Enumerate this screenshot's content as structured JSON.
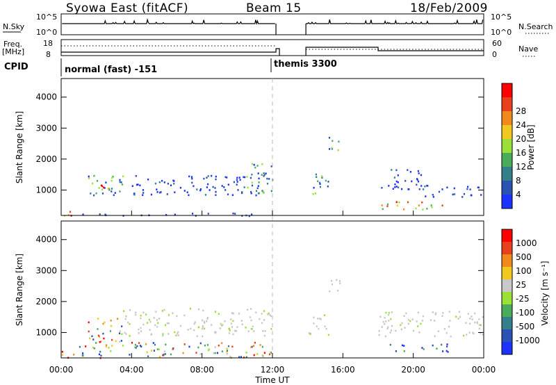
{
  "header": {
    "title": "Syowa East (fitACF)",
    "beam": "Beam 15",
    "date": "18/Feb/2009"
  },
  "strip1": {
    "left_label": "N.Sky",
    "right_label": "N.Search",
    "left_ticks": [
      "10^5",
      "10^0"
    ],
    "right_ticks": [
      "10^5",
      "10^0"
    ]
  },
  "strip2": {
    "left_label_1": "Freq.",
    "left_label_2": "[MHz]",
    "right_label": "Nave",
    "left_ticks": [
      "18",
      "8"
    ],
    "right_ticks": [
      "60",
      "0"
    ]
  },
  "cpid": {
    "label": "CPID",
    "mode1": "normal (fast) -151",
    "mode2": "themis 3300"
  },
  "x_axis": {
    "label": "Time UT",
    "ticks": [
      "00:00",
      "04:00",
      "08:00",
      "12:00",
      "16:00",
      "20:00",
      "00:00"
    ]
  },
  "chart_data": [
    {
      "type": "heatmap",
      "panel": "power",
      "ylabel": "Slant Range [km]",
      "xlabel": "Time UT",
      "xlim_hours": [
        0,
        24
      ],
      "ylim": [
        180,
        4600
      ],
      "y_ticks": [
        1000,
        2000,
        3000,
        4000
      ],
      "colorbar": {
        "label": "Power [dB]",
        "ticks": [
          "4",
          "8",
          "12",
          "16",
          "20",
          "24",
          "28"
        ],
        "colors": [
          "#1c33ff",
          "#2a52b3",
          "#34808a",
          "#4aab5a",
          "#9ae036",
          "#f2c820",
          "#f08a1c",
          "#e8401c",
          "#ff0000"
        ]
      },
      "data_gap_hours": [
        12.2,
        13.9
      ],
      "echo_regions": [
        {
          "t0": 0.0,
          "t1": 1.0,
          "r0": 200,
          "r1": 420,
          "level": "high"
        },
        {
          "t0": 1.0,
          "t1": 12.0,
          "r0": 180,
          "r1": 280,
          "level": "low"
        },
        {
          "t0": 1.5,
          "t1": 3.5,
          "r0": 700,
          "r1": 1500,
          "level": "mid"
        },
        {
          "t0": 2.2,
          "t1": 3.0,
          "r0": 900,
          "r1": 1300,
          "level": "high"
        },
        {
          "t0": 4.0,
          "t1": 12.0,
          "r0": 850,
          "r1": 1500,
          "level": "low"
        },
        {
          "t0": 10.5,
          "t1": 12.0,
          "r0": 900,
          "r1": 1900,
          "level": "mid"
        },
        {
          "t0": 14.0,
          "t1": 15.2,
          "r0": 900,
          "r1": 1600,
          "level": "mid"
        },
        {
          "t0": 15.0,
          "t1": 15.8,
          "r0": 2300,
          "r1": 2800,
          "level": "mid"
        },
        {
          "t0": 18.0,
          "t1": 20.5,
          "r0": 1000,
          "r1": 1700,
          "level": "low"
        },
        {
          "t0": 18.0,
          "t1": 22.0,
          "r0": 400,
          "r1": 650,
          "level": "high"
        },
        {
          "t0": 20.5,
          "t1": 24.0,
          "r0": 800,
          "r1": 1200,
          "level": "low"
        }
      ]
    },
    {
      "type": "heatmap",
      "panel": "velocity",
      "ylabel": "Slant Range [km]",
      "xlabel": "Time UT",
      "xlim_hours": [
        0,
        24
      ],
      "ylim": [
        180,
        4600
      ],
      "y_ticks": [
        1000,
        2000,
        3000,
        4000
      ],
      "colorbar": {
        "label": "Velocity [m s⁻¹]",
        "ticks": [
          "1000",
          "500",
          "100",
          "25",
          "-25",
          "-100",
          "-500",
          "-1000"
        ],
        "colors": [
          "#1c33ff",
          "#2a52b3",
          "#34808a",
          "#4aab5a",
          "#9ae036",
          "#c8c8c8",
          "#f2c820",
          "#f08a1c",
          "#e8401c",
          "#ff0000"
        ]
      },
      "data_gap_hours": [
        12.2,
        13.9
      ],
      "echo_regions": [
        {
          "t0": 0.0,
          "t1": 1.0,
          "r0": 200,
          "r1": 420,
          "level": "neg"
        },
        {
          "t0": 1.0,
          "t1": 12.0,
          "r0": 200,
          "r1": 700,
          "level": "mix"
        },
        {
          "t0": 1.5,
          "t1": 3.5,
          "r0": 700,
          "r1": 1500,
          "level": "mix"
        },
        {
          "t0": 3.5,
          "t1": 12.0,
          "r0": 900,
          "r1": 1800,
          "level": "gs"
        },
        {
          "t0": 14.0,
          "t1": 15.2,
          "r0": 900,
          "r1": 1600,
          "level": "gs"
        },
        {
          "t0": 15.0,
          "t1": 15.8,
          "r0": 2300,
          "r1": 2800,
          "level": "gs"
        },
        {
          "t0": 18.0,
          "t1": 24.0,
          "r0": 900,
          "r1": 1700,
          "level": "gs"
        },
        {
          "t0": 18.5,
          "t1": 22.0,
          "r0": 400,
          "r1": 650,
          "level": "pos"
        }
      ]
    }
  ]
}
